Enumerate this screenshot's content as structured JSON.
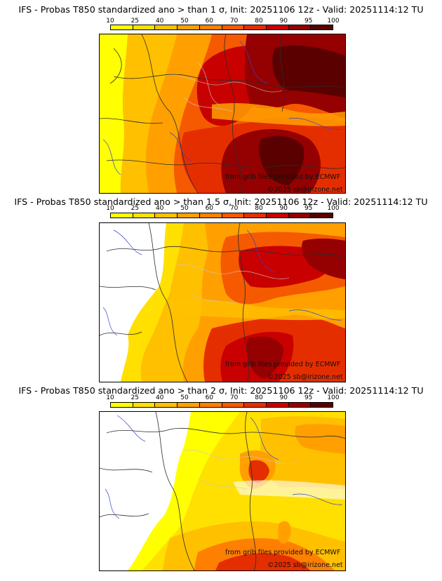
{
  "palette": [
    "#ffff00",
    "#ffe000",
    "#ffc000",
    "#ffa000",
    "#ff7f00",
    "#f55a00",
    "#e52e00",
    "#c80000",
    "#950000",
    "#5a0000"
  ],
  "legend_ticks": [
    "10",
    "25",
    "40",
    "50",
    "60",
    "70",
    "80",
    "90",
    "95",
    "100"
  ],
  "panels": [
    {
      "title": "IFS - Probas T850  standardized ano > than 1 σ, Init: 20251106 12z - Valid: 20251114:12 TU",
      "credit_1": "from grib files provided by ECMWF",
      "credit_2": "©2025 sb@irizone.net"
    },
    {
      "title": "IFS - Probas T850  standardized ano > than 1.5 σ, Init: 20251106 12z - Valid: 20251114:12 TU",
      "credit_1": "from grib files provided by ECMWF",
      "credit_2": "©2025 sb@irizone.net"
    },
    {
      "title": "IFS - Probas T850  standardized ano > than 2 σ, Init: 20251106 12z - Valid: 20251114:12 TU",
      "credit_1": "from grib files provided by ECMWF",
      "credit_2": "©2025 sb@irizone.net"
    }
  ]
}
